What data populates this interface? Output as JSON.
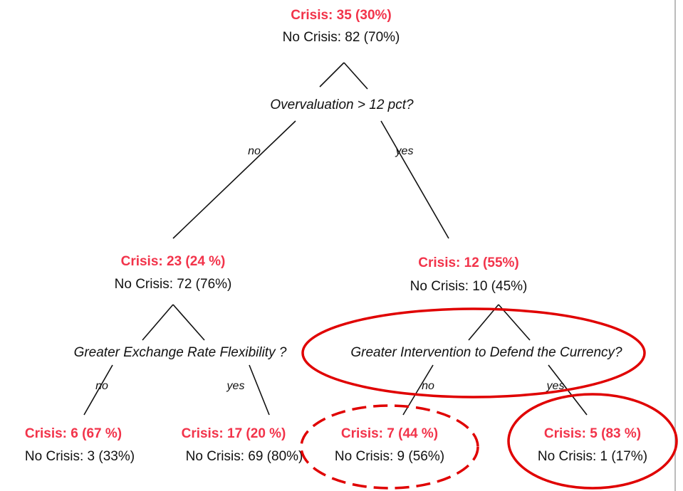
{
  "nodes": [
    {
      "crisis": "Crisis: 35 (30%)",
      "no_crisis": "No Crisis: 82 (70%)",
      "question": "Overvaluation > 12 pct?",
      "branches": [
        "no",
        "yes"
      ]
    },
    {
      "crisis": "Crisis: 23 (24 %)",
      "no_crisis": "No Crisis: 72 (76%)",
      "question": "Greater Exchange Rate Flexibility ?",
      "branches": [
        "no",
        "yes"
      ]
    },
    {
      "crisis": "Crisis: 12 (55%)",
      "no_crisis": "No Crisis: 10 (45%)",
      "question": "Greater Intervention to Defend the Currency?",
      "branches": [
        "no",
        "yes"
      ]
    },
    {
      "crisis": "Crisis: 6 (67 %)",
      "no_crisis": "No Crisis: 3 (33%)"
    },
    {
      "crisis": "Crisis: 17 (20 %)",
      "no_crisis": "No Crisis: 69 (80%)"
    },
    {
      "crisis": "Crisis: 7 (44 %)",
      "no_crisis": "No Crisis: 9 (56%)"
    },
    {
      "crisis": "Crisis: 5 (83 %)",
      "no_crisis": "No Crisis: 1 (17%)"
    }
  ]
}
